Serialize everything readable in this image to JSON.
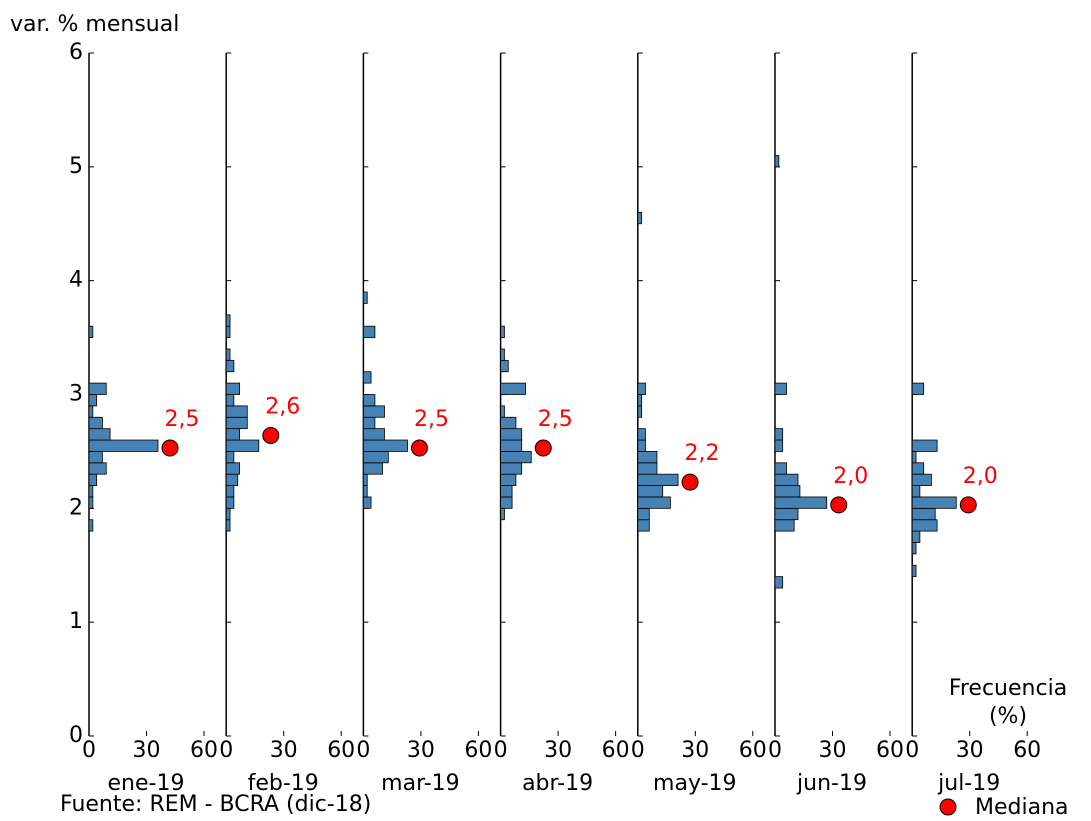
{
  "chart_data": {
    "type": "histogram",
    "orientation": "horizontal",
    "y_label": "var. % mensual",
    "ylim": [
      0,
      6
    ],
    "yticks": [
      0,
      1,
      2,
      3,
      4,
      5,
      6
    ],
    "xlim": [
      0,
      60
    ],
    "xticks": [
      0,
      30,
      60
    ],
    "x_label": [
      "Frecuencia",
      "(%)"
    ],
    "color": "#4682b4",
    "median_color": "#ff0000",
    "legend": "Mediana",
    "source": "Fuente: REM - BCRA (dic-18)",
    "panels": [
      {
        "name": "ene-19",
        "bins": [
          1.8,
          1.9,
          2.0,
          2.1,
          2.2,
          2.3,
          2.4,
          2.5,
          2.6,
          2.7,
          2.8,
          2.9,
          3.0,
          3.1,
          3.2,
          3.3,
          3.4,
          3.5,
          3.6
        ],
        "values": [
          2,
          0,
          2,
          2,
          4,
          9,
          7,
          36,
          11,
          7,
          2,
          4,
          9,
          0,
          0,
          0,
          0,
          2
        ],
        "median": {
          "value": 2.53,
          "label": "2,5"
        }
      },
      {
        "name": "feb-19",
        "bins": [
          1.8,
          1.9,
          2.0,
          2.1,
          2.2,
          2.3,
          2.4,
          2.5,
          2.6,
          2.7,
          2.8,
          2.9,
          3.0,
          3.1,
          3.2,
          3.3,
          3.4,
          3.5,
          3.6,
          3.7
        ],
        "values": [
          2,
          2,
          4,
          4,
          6,
          7,
          4,
          17,
          7,
          11,
          11,
          4,
          7,
          0,
          4,
          2,
          0,
          2,
          2
        ],
        "median": {
          "value": 2.64,
          "label": "2,6"
        }
      },
      {
        "name": "mar-19",
        "bins": [
          2.0,
          2.1,
          2.2,
          2.3,
          2.4,
          2.5,
          2.6,
          2.7,
          2.8,
          2.9,
          3.0,
          3.1,
          3.2,
          3.3,
          3.4,
          3.5,
          3.6,
          3.7,
          3.8,
          3.9
        ],
        "values": [
          4,
          2,
          2,
          10,
          13,
          23,
          11,
          6,
          11,
          6,
          0,
          4,
          0,
          0,
          0,
          6,
          0,
          0,
          2
        ],
        "median": {
          "value": 2.53,
          "label": "2,5"
        }
      },
      {
        "name": "abr-19",
        "bins": [
          1.9,
          2.0,
          2.1,
          2.2,
          2.3,
          2.4,
          2.5,
          2.6,
          2.7,
          2.8,
          2.9,
          3.0,
          3.1,
          3.2,
          3.3,
          3.4,
          3.5,
          3.6
        ],
        "values": [
          2,
          6,
          6,
          8,
          11,
          16,
          11,
          11,
          8,
          2,
          0,
          13,
          0,
          4,
          2,
          0,
          2
        ],
        "median": {
          "value": 2.53,
          "label": "2,5"
        }
      },
      {
        "name": "may-19",
        "bins": [
          1.8,
          1.9,
          2.0,
          2.1,
          2.2,
          2.3,
          2.4,
          2.5,
          2.6,
          2.7,
          2.8,
          2.9,
          3.0,
          3.1,
          3.2,
          3.3,
          3.4,
          3.5,
          3.6,
          3.7,
          3.8,
          3.9,
          4.0,
          4.1,
          4.2,
          4.3,
          4.4,
          4.5,
          4.6
        ],
        "values": [
          6,
          6,
          17,
          13,
          21,
          10,
          10,
          4,
          4,
          0,
          2,
          2,
          4,
          0,
          0,
          0,
          0,
          0,
          0,
          0,
          0,
          0,
          0,
          0,
          0,
          0,
          0,
          2
        ],
        "median": {
          "value": 2.23,
          "label": "2,2"
        }
      },
      {
        "name": "jun-19",
        "bins": [
          1.3,
          1.4,
          1.5,
          1.6,
          1.7,
          1.8,
          1.9,
          2.0,
          2.1,
          2.2,
          2.3,
          2.4,
          2.5,
          2.6,
          2.7,
          2.8,
          2.9,
          3.0,
          3.1,
          3.2,
          3.3,
          3.4,
          3.5,
          3.6,
          3.7,
          3.8,
          3.9,
          4.0,
          4.1,
          4.2,
          4.3,
          4.4,
          4.5,
          4.6,
          4.7,
          4.8,
          4.9,
          5.0,
          5.1
        ],
        "values": [
          4,
          0,
          0,
          0,
          0,
          10,
          12,
          27,
          13,
          12,
          6,
          0,
          4,
          4,
          0,
          0,
          0,
          6,
          0,
          0,
          0,
          0,
          0,
          0,
          0,
          0,
          0,
          0,
          0,
          0,
          0,
          0,
          0,
          0,
          0,
          0,
          0,
          2
        ],
        "median": {
          "value": 2.03,
          "label": "2,0"
        }
      },
      {
        "name": "jul-19",
        "bins": [
          1.4,
          1.5,
          1.6,
          1.7,
          1.8,
          1.9,
          2.0,
          2.1,
          2.2,
          2.3,
          2.4,
          2.5,
          2.6,
          2.7,
          2.8,
          2.9,
          3.0,
          3.1
        ],
        "values": [
          2,
          0,
          2,
          4,
          13,
          12,
          23,
          4,
          10,
          6,
          2,
          13,
          0,
          0,
          0,
          0,
          6
        ],
        "median": {
          "value": 2.03,
          "label": "2,0"
        }
      }
    ]
  }
}
